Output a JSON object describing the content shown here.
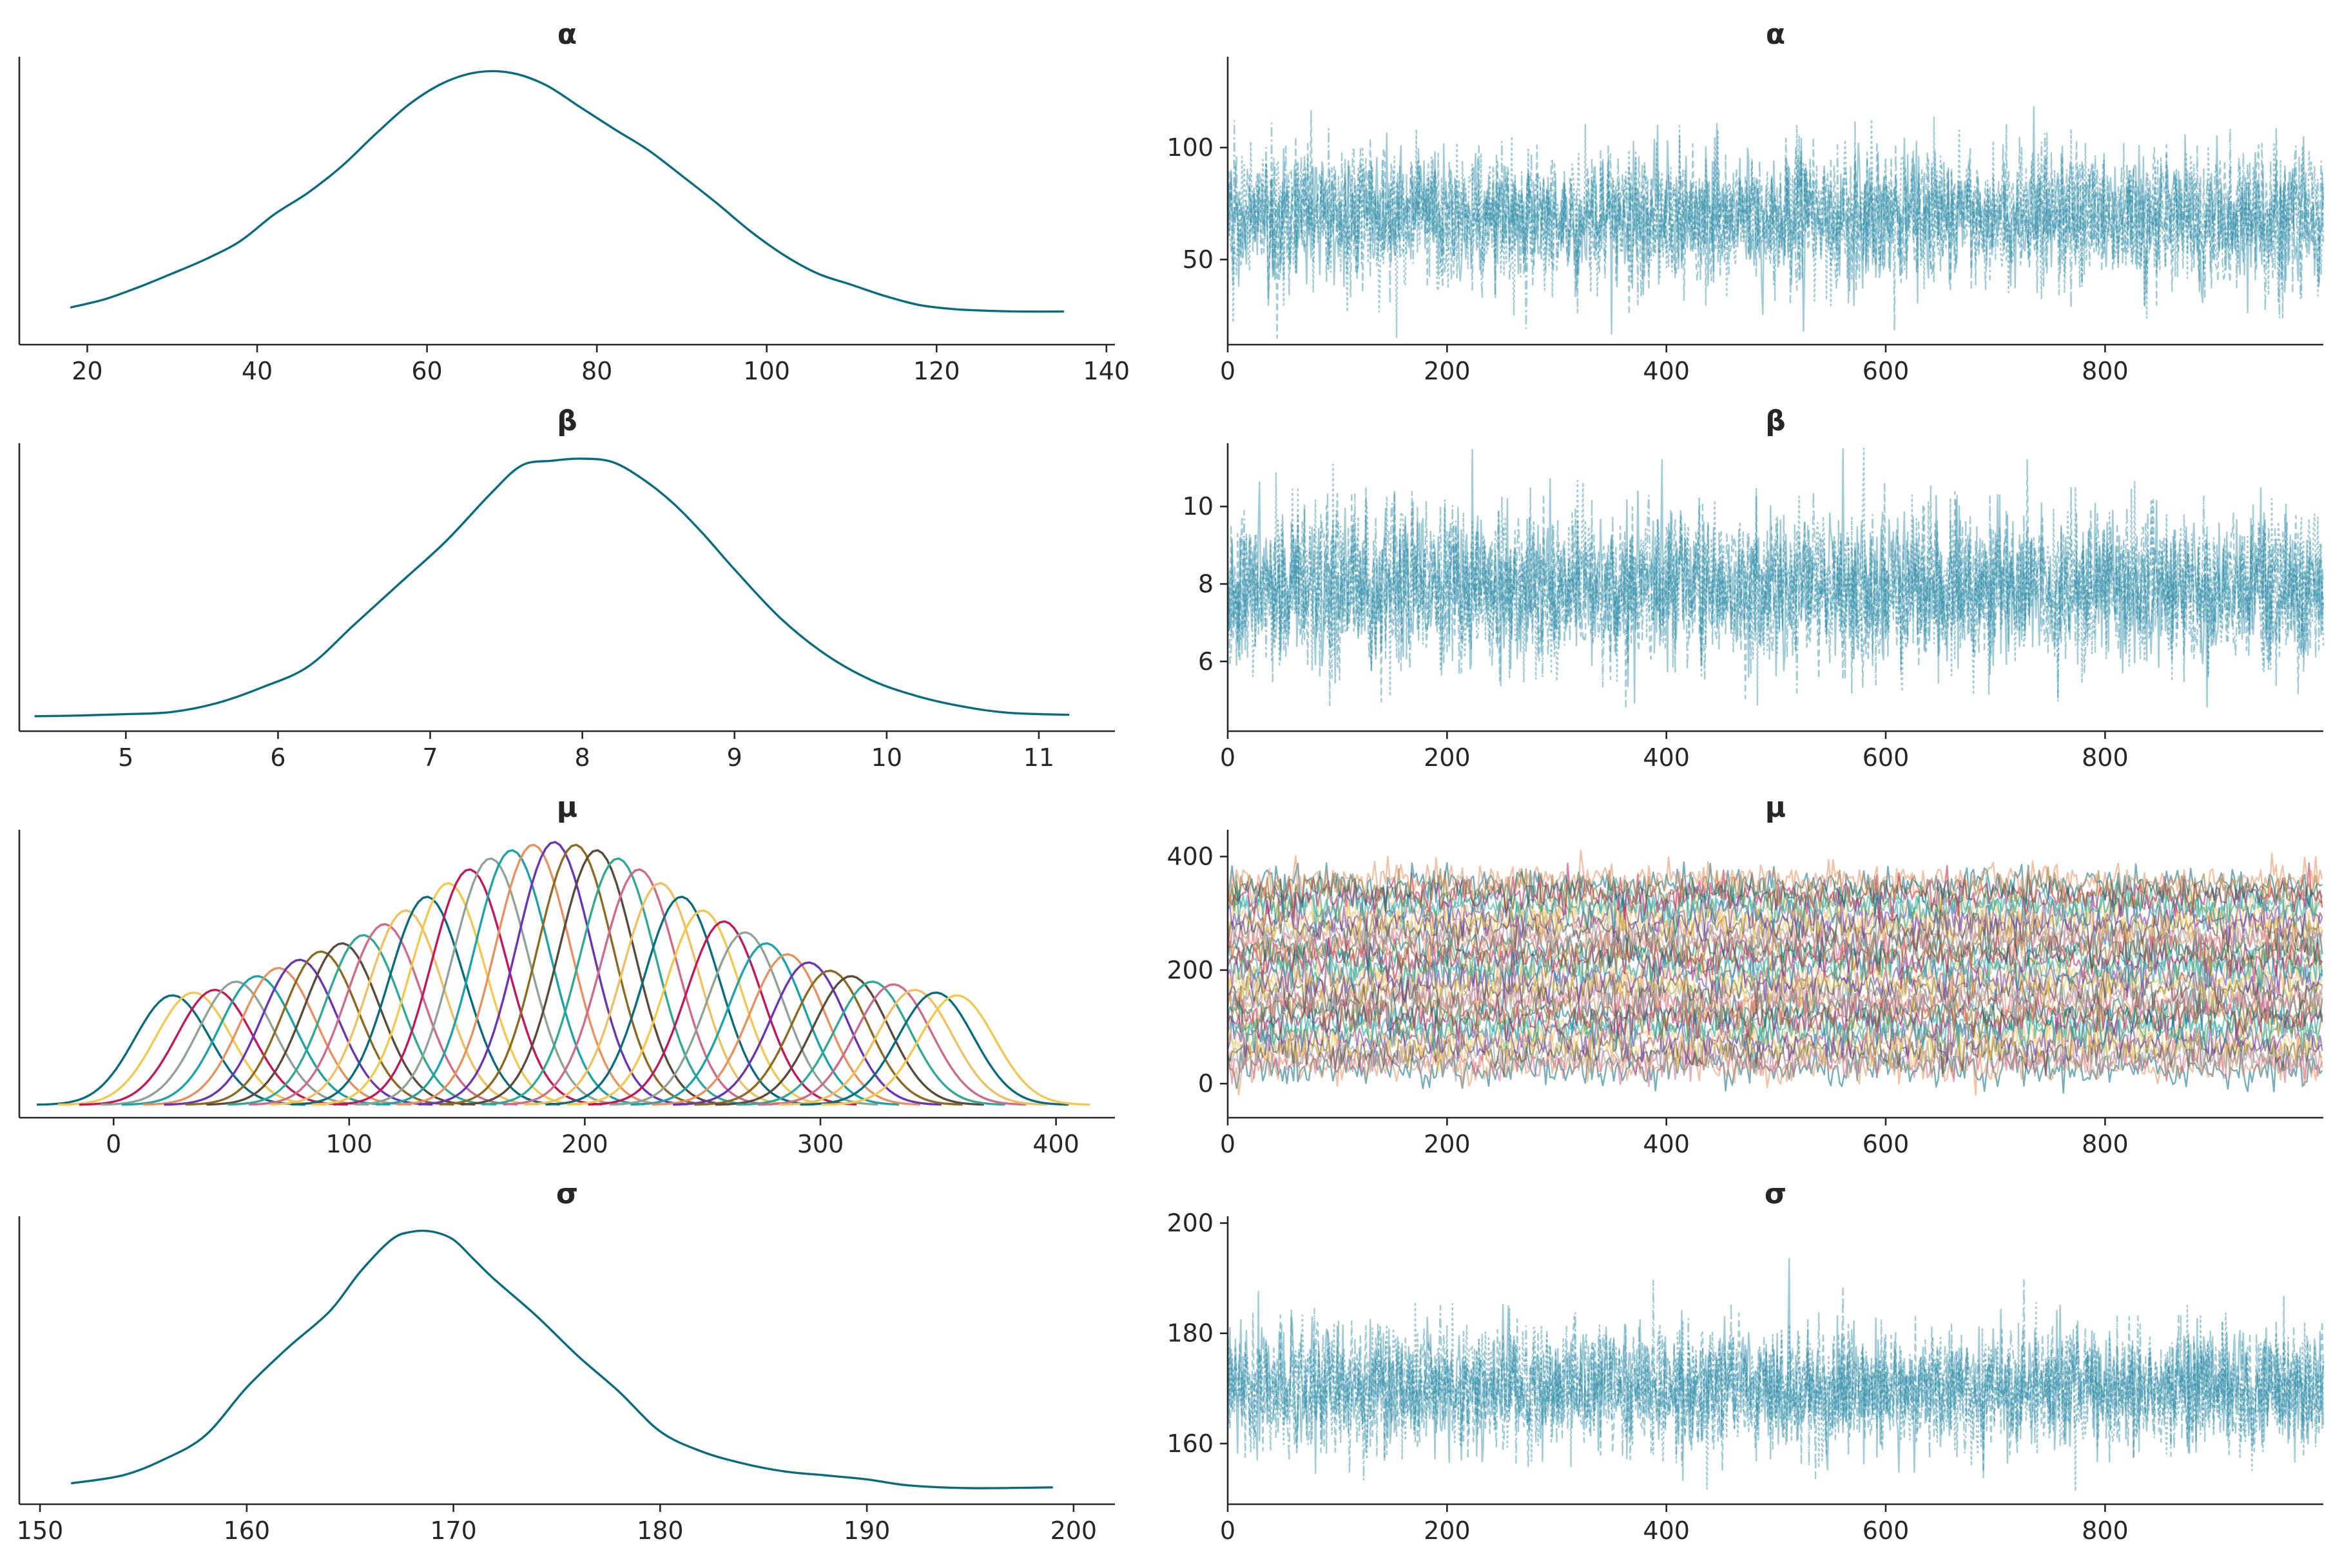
{
  "colors": {
    "primary": "#086C80",
    "trace": "#2D8CA6",
    "axis": "#262626",
    "mu_palette": [
      "#086C80",
      "#F2C94C",
      "#C2185B",
      "#8FA395",
      "#1AA3A8",
      "#E8905E",
      "#6A35B5",
      "#8C6A1F",
      "#5A4A3A",
      "#2FA896",
      "#D06A8C",
      "#F0C060"
    ]
  },
  "chart_data": [
    {
      "type": "line",
      "kind": "kde",
      "title": "α",
      "xlim": [
        12,
        141
      ],
      "xticks": [
        20,
        40,
        60,
        80,
        100,
        120,
        140
      ],
      "y_axis_ticks": false,
      "x": [
        18,
        22,
        26,
        30,
        34,
        38,
        42,
        46,
        50,
        54,
        58,
        62,
        66,
        70,
        74,
        78,
        82,
        86,
        90,
        94,
        98,
        102,
        106,
        110,
        114,
        118,
        122,
        126,
        130,
        135
      ],
      "y": [
        0.003,
        0.004,
        0.0055,
        0.0072,
        0.009,
        0.0112,
        0.0145,
        0.0172,
        0.0205,
        0.0245,
        0.0282,
        0.0308,
        0.0321,
        0.032,
        0.0305,
        0.0278,
        0.0251,
        0.0225,
        0.0193,
        0.016,
        0.0125,
        0.0095,
        0.0072,
        0.0058,
        0.0044,
        0.0033,
        0.0028,
        0.0026,
        0.0025,
        0.0025
      ]
    },
    {
      "type": "line",
      "kind": "trace",
      "title": "α",
      "xlim": [
        0,
        999
      ],
      "ylim": [
        12,
        140
      ],
      "xticks": [
        0,
        200,
        400,
        600,
        800
      ],
      "yticks": [
        50,
        100
      ],
      "n_draws": 1000,
      "n_chains": 4,
      "mean": 69,
      "sd": 15
    },
    {
      "type": "line",
      "kind": "kde",
      "title": "β",
      "xlim": [
        4.3,
        11.5
      ],
      "xticks": [
        5,
        6,
        7,
        8,
        9,
        10,
        11
      ],
      "y_axis_ticks": false,
      "x": [
        4.4,
        4.7,
        5.0,
        5.3,
        5.6,
        5.9,
        6.2,
        6.5,
        6.8,
        7.1,
        7.4,
        7.6,
        7.8,
        8.0,
        8.2,
        8.4,
        8.6,
        8.8,
        9.0,
        9.3,
        9.6,
        9.9,
        10.2,
        10.5,
        10.8,
        11.2
      ],
      "y": [
        0.003,
        0.004,
        0.006,
        0.009,
        0.022,
        0.045,
        0.075,
        0.135,
        0.195,
        0.255,
        0.325,
        0.365,
        0.372,
        0.375,
        0.37,
        0.345,
        0.31,
        0.265,
        0.215,
        0.145,
        0.092,
        0.055,
        0.032,
        0.017,
        0.008,
        0.005
      ]
    },
    {
      "type": "line",
      "kind": "trace",
      "title": "β",
      "xlim": [
        0,
        999
      ],
      "ylim": [
        4.2,
        11.6
      ],
      "xticks": [
        0,
        200,
        400,
        600,
        800
      ],
      "yticks": [
        6,
        8,
        10
      ],
      "n_draws": 1000,
      "n_chains": 4,
      "mean": 7.9,
      "sd": 1.0
    },
    {
      "type": "line",
      "kind": "kde-multi",
      "title": "μ",
      "xlim": [
        -40,
        425
      ],
      "xticks": [
        0,
        100,
        200,
        300,
        400
      ],
      "y_axis_ticks": false,
      "series_centers": [
        25,
        34,
        43,
        52,
        61,
        70,
        79,
        88,
        97,
        106,
        115,
        124,
        133,
        142,
        151,
        160,
        169,
        178,
        187,
        196,
        205,
        214,
        223,
        232,
        241,
        250,
        259,
        268,
        277,
        286,
        295,
        304,
        313,
        322,
        331,
        340,
        349,
        358
      ],
      "series_peaks": [
        0.4,
        0.41,
        0.42,
        0.45,
        0.47,
        0.5,
        0.53,
        0.56,
        0.59,
        0.62,
        0.66,
        0.71,
        0.76,
        0.81,
        0.86,
        0.9,
        0.93,
        0.95,
        0.96,
        0.95,
        0.93,
        0.9,
        0.86,
        0.81,
        0.76,
        0.71,
        0.67,
        0.63,
        0.59,
        0.55,
        0.52,
        0.49,
        0.47,
        0.45,
        0.44,
        0.42,
        0.41,
        0.4
      ]
    },
    {
      "type": "line",
      "kind": "trace-multi",
      "title": "μ",
      "xlim": [
        0,
        999
      ],
      "ylim": [
        -60,
        445
      ],
      "xticks": [
        0,
        200,
        400,
        600,
        800
      ],
      "yticks": [
        0,
        200,
        400
      ],
      "n_draws": 1000,
      "series_means": [
        25,
        34,
        43,
        52,
        61,
        70,
        79,
        88,
        97,
        106,
        115,
        124,
        133,
        142,
        151,
        160,
        169,
        178,
        187,
        196,
        205,
        214,
        223,
        232,
        241,
        250,
        259,
        268,
        277,
        286,
        295,
        304,
        313,
        322,
        331,
        340,
        349,
        358
      ],
      "sd": 16
    },
    {
      "type": "line",
      "kind": "kde",
      "title": "σ",
      "xlim": [
        149,
        202
      ],
      "xticks": [
        150,
        160,
        170,
        180,
        190,
        200
      ],
      "y_axis_ticks": false,
      "x": [
        151.5,
        154,
        156,
        158,
        160,
        162,
        164,
        165.5,
        167,
        168,
        169,
        170,
        171,
        172,
        174,
        176,
        178,
        180,
        182,
        184,
        186,
        188,
        190,
        192,
        195,
        199
      ],
      "y": [
        0.002,
        0.004,
        0.008,
        0.014,
        0.026,
        0.036,
        0.045,
        0.055,
        0.063,
        0.065,
        0.065,
        0.063,
        0.058,
        0.053,
        0.044,
        0.034,
        0.025,
        0.015,
        0.01,
        0.007,
        0.005,
        0.004,
        0.003,
        0.0015,
        0.0008,
        0.001
      ]
    },
    {
      "type": "line",
      "kind": "trace",
      "title": "σ",
      "xlim": [
        0,
        999
      ],
      "ylim": [
        149,
        201
      ],
      "xticks": [
        0,
        200,
        400,
        600,
        800
      ],
      "yticks": [
        160,
        180,
        200
      ],
      "n_draws": 1000,
      "n_chains": 4,
      "mean": 170,
      "sd": 5.5
    }
  ]
}
